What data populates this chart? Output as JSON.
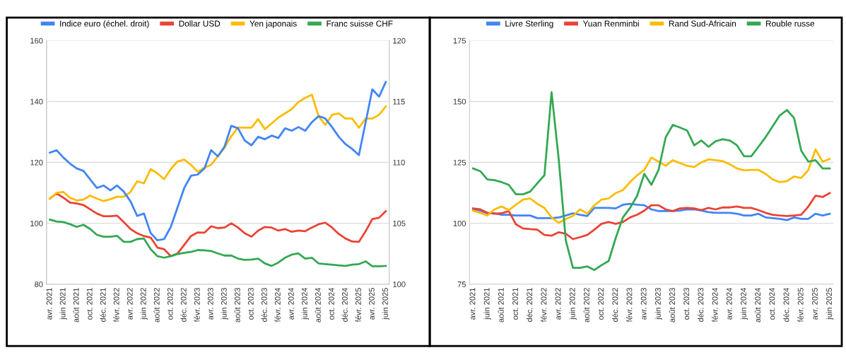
{
  "chart_data": [
    {
      "type": "line",
      "categories": [
        "avr. 2021",
        null,
        "juin 2021",
        null,
        "août 2021",
        null,
        "oct. 2021",
        null,
        "déc. 2021",
        null,
        "févr. 2022",
        null,
        "avr. 2022",
        null,
        "juin 2022",
        null,
        "août 2022",
        null,
        "oct. 2022",
        null,
        "déc. 2022",
        null,
        "févr. 2023",
        null,
        "avr. 2023",
        null,
        "juin 2023",
        null,
        "août 2023",
        null,
        "oct. 2023",
        null,
        "déc. 2023",
        null,
        "févr. 2024",
        null,
        "avr. 2024",
        null,
        "juin 2024",
        null,
        "août 2024",
        null,
        "oct. 2024",
        null,
        "déc. 2024",
        null,
        "févr. 2025",
        null,
        "avr. 2025",
        null,
        "juin 2025"
      ],
      "series": [
        {
          "name": "Indice euro (échel. droit)",
          "color": "#4285f4",
          "axis": "y2",
          "values": [
            110.8,
            111.0,
            110.4,
            109.9,
            109.5,
            109.3,
            108.6,
            107.9,
            108.1,
            107.7,
            108.1,
            107.6,
            106.8,
            105.6,
            105.8,
            104.2,
            103.6,
            103.7,
            104.7,
            106.3,
            107.9,
            108.9,
            109.0,
            109.5,
            111.0,
            110.5,
            111.3,
            113.0,
            112.8,
            111.8,
            111.4,
            112.1,
            111.9,
            112.2,
            112.0,
            112.8,
            112.6,
            112.9,
            112.6,
            113.3,
            113.8,
            113.6,
            112.9,
            112.1,
            111.5,
            111.1,
            110.6,
            113.3,
            116.0,
            115.4,
            116.6
          ]
        },
        {
          "name": "Dollar USD",
          "color": "#ea4335",
          "values": [
            108.1,
            109.8,
            108.4,
            106.8,
            106.5,
            106.0,
            104.6,
            103.2,
            102.3,
            102.3,
            102.5,
            100.4,
            98.1,
            96.7,
            95.8,
            95.3,
            92.0,
            91.5,
            89.2,
            90.1,
            92.9,
            95.8,
            97.0,
            96.9,
            99.0,
            98.4,
            98.6,
            100.0,
            98.6,
            96.7,
            95.6,
            97.6,
            98.8,
            98.6,
            97.6,
            98.1,
            97.2,
            97.6,
            97.4,
            98.6,
            99.7,
            100.2,
            98.6,
            96.5,
            95.0,
            94.0,
            93.9,
            97.4,
            101.4,
            101.8,
            104.0
          ]
        },
        {
          "name": "Yen japonais",
          "color": "#fbbc04",
          "values": [
            108.1,
            110.0,
            110.3,
            108.4,
            107.5,
            107.8,
            109.1,
            108.1,
            107.3,
            107.9,
            108.7,
            108.7,
            110.3,
            113.8,
            113.1,
            117.8,
            116.4,
            114.5,
            117.8,
            120.3,
            120.9,
            119.2,
            116.9,
            118.3,
            119.2,
            122.0,
            124.8,
            128.6,
            131.4,
            131.4,
            131.4,
            134.2,
            130.9,
            132.8,
            134.7,
            136.1,
            137.5,
            139.8,
            141.2,
            142.2,
            135.1,
            132.3,
            135.6,
            136.1,
            134.4,
            134.4,
            131.4,
            134.4,
            134.4,
            135.6,
            138.4
          ]
        },
        {
          "name": "Franc suisse CHF",
          "color": "#34a853",
          "values": [
            101.2,
            100.6,
            100.4,
            99.7,
            98.8,
            99.5,
            98.1,
            96.2,
            95.6,
            95.6,
            95.9,
            93.9,
            93.9,
            94.8,
            95.0,
            91.5,
            89.2,
            88.7,
            89.2,
            89.9,
            90.3,
            90.6,
            91.2,
            91.1,
            90.9,
            90.1,
            89.4,
            89.4,
            88.4,
            88.0,
            88.1,
            88.4,
            86.8,
            86.0,
            87.1,
            88.7,
            89.7,
            90.1,
            88.4,
            88.7,
            86.8,
            86.6,
            86.4,
            86.2,
            86.0,
            86.4,
            86.6,
            87.5,
            85.9,
            85.9,
            86.0
          ]
        }
      ],
      "ylim": [
        80,
        160
      ],
      "yticks": [
        80,
        100,
        120,
        140,
        160
      ],
      "y2lim": [
        100,
        120
      ],
      "y2ticks": [
        100,
        105,
        110,
        115,
        120
      ],
      "grid": "y",
      "legend": "top"
    },
    {
      "type": "line",
      "categories": [
        "avr. 2021",
        null,
        "juin 2021",
        null,
        "août 2021",
        null,
        "oct. 2021",
        null,
        "déc. 2021",
        null,
        "févr. 2022",
        null,
        "avr. 2022",
        null,
        "juin 2022",
        null,
        "août 2022",
        null,
        "oct. 2022",
        null,
        "déc. 2022",
        null,
        "févr. 2023",
        null,
        "avr. 2023",
        null,
        "juin 2023",
        null,
        "août 2023",
        null,
        "oct. 2023",
        null,
        "déc. 2023",
        null,
        "févr. 2024",
        null,
        "avr. 2024",
        null,
        "juin 2024",
        null,
        "août 2024",
        null,
        "oct. 2024",
        null,
        "déc. 2024",
        null,
        "févr. 2025",
        null,
        "avr. 2025",
        null,
        "juin 2025"
      ],
      "series": [
        {
          "name": "Livre Sterling",
          "color": "#4285f4",
          "values": [
            105.7,
            105.2,
            104.1,
            104.1,
            103.5,
            103.5,
            103.2,
            103.2,
            103.2,
            102.1,
            102.1,
            102.1,
            102.4,
            103.2,
            104.1,
            103.5,
            103.0,
            106.3,
            106.3,
            106.3,
            106.1,
            107.6,
            108.0,
            107.6,
            107.4,
            105.7,
            105.0,
            105.0,
            105.0,
            105.2,
            105.7,
            105.7,
            105.2,
            104.6,
            104.3,
            104.3,
            104.3,
            103.9,
            103.2,
            103.2,
            103.9,
            102.4,
            102.1,
            101.8,
            101.3,
            102.4,
            101.8,
            101.8,
            103.9,
            103.2,
            103.9
          ]
        },
        {
          "name": "Yuan Renminbi",
          "color": "#ea4335",
          "values": [
            106.1,
            105.7,
            104.3,
            103.9,
            104.1,
            105.0,
            99.6,
            97.9,
            97.6,
            97.4,
            95.2,
            94.9,
            96.3,
            95.7,
            93.5,
            94.3,
            95.2,
            97.4,
            99.8,
            100.5,
            99.8,
            100.5,
            102.4,
            103.5,
            105.2,
            107.4,
            107.4,
            105.7,
            105.0,
            106.1,
            106.3,
            106.1,
            105.4,
            106.3,
            105.7,
            106.5,
            106.5,
            106.9,
            106.3,
            106.3,
            105.4,
            104.3,
            103.5,
            103.2,
            103.0,
            103.2,
            103.5,
            106.9,
            111.3,
            110.8,
            112.4
          ]
        },
        {
          "name": "Rand Sud-Africain",
          "color": "#fbbc04",
          "values": [
            105.2,
            104.3,
            103.2,
            105.7,
            106.9,
            105.4,
            107.6,
            109.7,
            110.2,
            108.0,
            106.3,
            102.4,
            100.2,
            101.8,
            103.0,
            105.7,
            104.0,
            107.4,
            109.7,
            110.2,
            112.4,
            113.6,
            116.9,
            119.7,
            121.9,
            127.0,
            125.3,
            123.6,
            125.9,
            124.7,
            123.6,
            123.1,
            125.0,
            126.2,
            125.9,
            125.5,
            124.2,
            122.5,
            121.7,
            121.9,
            121.9,
            120.3,
            118.0,
            116.9,
            117.3,
            119.2,
            118.6,
            121.9,
            130.3,
            125.3,
            126.4
          ]
        },
        {
          "name": "Rouble russe",
          "color": "#34a853",
          "values": [
            122.5,
            121.4,
            118.0,
            117.7,
            116.9,
            115.8,
            111.9,
            111.9,
            113.0,
            116.4,
            119.7,
            153.8,
            126.4,
            92.9,
            81.7,
            81.7,
            82.3,
            80.8,
            82.8,
            84.5,
            94.0,
            102.4,
            106.3,
            111.3,
            120.3,
            115.8,
            121.9,
            135.3,
            140.4,
            139.3,
            138.1,
            132.0,
            134.0,
            131.4,
            133.7,
            134.5,
            134.0,
            132.0,
            127.5,
            127.5,
            131.4,
            135.3,
            139.8,
            144.3,
            146.5,
            143.2,
            129.8,
            125.3,
            125.9,
            122.5,
            122.5
          ]
        }
      ],
      "ylim": [
        75,
        175
      ],
      "yticks": [
        75,
        100,
        125,
        150,
        175
      ],
      "grid": "y",
      "legend": "top"
    }
  ]
}
